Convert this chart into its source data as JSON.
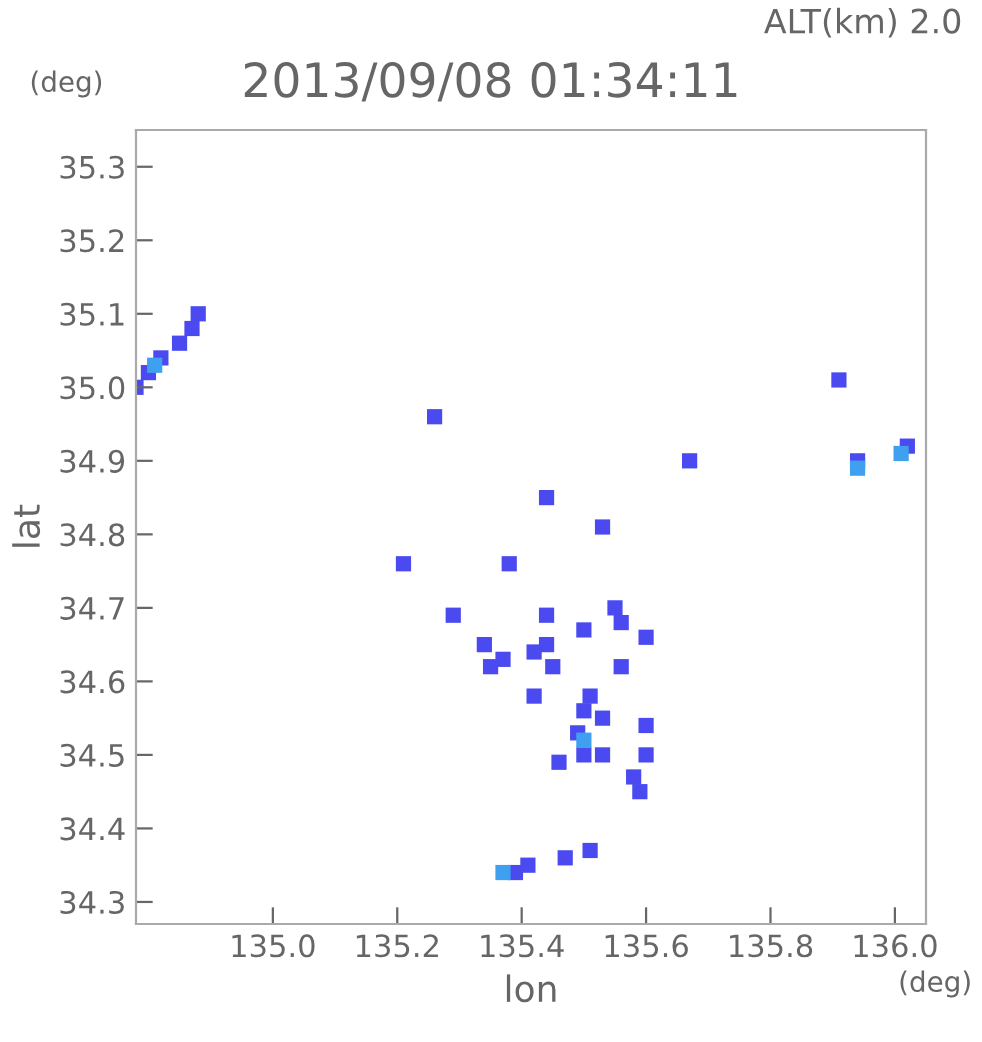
{
  "chart_data": {
    "type": "scatter",
    "title": "2013/09/08 01:34:11",
    "xlabel": "lon",
    "ylabel": "lat",
    "annotations": [
      "ALT(km) 2.0",
      "(deg)",
      "(deg)"
    ],
    "xlim": [
      134.78,
      136.05
    ],
    "ylim": [
      34.27,
      35.35
    ],
    "xticks": [
      {
        "value": 135.0,
        "label": "135.0"
      },
      {
        "value": 135.2,
        "label": "135.2"
      },
      {
        "value": 135.4,
        "label": "135.4"
      },
      {
        "value": 135.6,
        "label": "135.6"
      },
      {
        "value": 135.8,
        "label": "135.8"
      },
      {
        "value": 136.0,
        "label": "136.0"
      }
    ],
    "yticks": [
      34.3,
      34.4,
      34.5,
      34.6,
      34.7,
      34.8,
      34.9,
      {
        "value": 35.0,
        "label": "35.0"
      },
      35.1,
      35.2,
      35.3
    ],
    "marker": "square",
    "grid": false,
    "legend": false,
    "series": [
      {
        "color": "#4a4af0",
        "x": [
          134.8,
          134.82,
          134.85,
          134.87,
          134.88,
          134.78,
          135.26,
          135.94,
          136.02,
          135.91,
          135.67,
          135.44,
          135.53,
          135.38,
          135.21,
          135.29,
          135.34,
          135.37,
          135.44,
          135.44,
          135.55,
          135.56,
          135.6,
          135.5,
          135.42,
          135.45,
          135.35,
          135.42,
          135.51,
          135.5,
          135.56,
          135.5,
          135.46,
          135.49,
          135.53,
          135.53,
          135.58,
          135.6,
          135.6,
          135.59,
          135.39,
          135.41,
          135.47,
          135.51
        ],
        "values": [
          35.02,
          35.04,
          35.06,
          35.08,
          35.1,
          35.0,
          34.96,
          34.9,
          34.92,
          35.01,
          34.9,
          34.85,
          34.81,
          34.76,
          34.76,
          34.69,
          34.65,
          34.63,
          34.69,
          34.65,
          34.7,
          34.68,
          34.66,
          34.67,
          34.64,
          34.62,
          34.62,
          34.58,
          34.58,
          34.56,
          34.62,
          34.5,
          34.49,
          34.53,
          34.55,
          34.5,
          34.47,
          34.5,
          34.54,
          34.45,
          34.34,
          34.35,
          34.36,
          34.37
        ]
      },
      {
        "color": "#40a0f0",
        "x": [
          134.81,
          135.37,
          135.94,
          136.01,
          135.5
        ],
        "values": [
          35.03,
          34.34,
          34.89,
          34.91,
          34.52
        ]
      }
    ]
  }
}
